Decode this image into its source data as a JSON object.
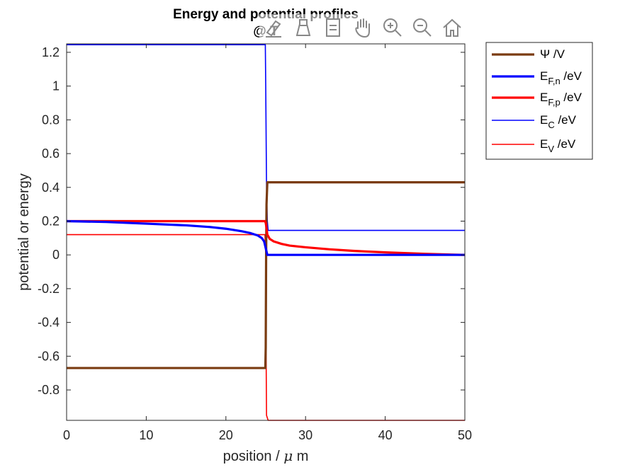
{
  "chart_data": {
    "type": "line",
    "title": "Energy and potential profiles",
    "title_line2": "@ T",
    "xlabel_text": "position / ",
    "xlabel_mu": "μ",
    "xlabel_unit": " m",
    "ylabel": "potential or energy",
    "xlim": [
      0,
      50
    ],
    "ylim": [
      -0.98,
      1.25
    ],
    "xticks": [
      0,
      10,
      20,
      30,
      40,
      50
    ],
    "xtick_labels": [
      "0",
      "10",
      "20",
      "30",
      "40",
      "50"
    ],
    "yticks": [
      -0.8,
      -0.6,
      -0.4,
      -0.2,
      0,
      0.2,
      0.4,
      0.6,
      0.8,
      1,
      1.2
    ],
    "ytick_labels": [
      "-0.8",
      "-0.6",
      "-0.4",
      "-0.2",
      "0",
      "0.2",
      "0.4",
      "0.6",
      "0.8",
      "1",
      "1.2"
    ],
    "grid": false,
    "legend_position": "outside-right-top",
    "series": [
      {
        "key": "psi",
        "name_main": "Ψ /V",
        "name_sub": "",
        "name_suffix": "",
        "color": "#7a3b10",
        "thick": true,
        "x": [
          0,
          24.95,
          25.0,
          25.05,
          25.1,
          25.2,
          50
        ],
        "y": [
          -0.67,
          -0.67,
          -0.55,
          0.0,
          0.3,
          0.43,
          0.43
        ]
      },
      {
        "key": "efn",
        "name_main": "E",
        "name_sub": "F,n",
        "name_suffix": " /eV",
        "color": "#0000ff",
        "thick": true,
        "x": [
          0,
          5,
          10,
          15,
          18,
          20,
          22,
          23,
          24,
          24.5,
          24.8,
          25.0,
          25.1,
          25.2,
          26,
          30,
          40,
          50
        ],
        "y": [
          0.2,
          0.195,
          0.185,
          0.175,
          0.165,
          0.155,
          0.14,
          0.13,
          0.115,
          0.1,
          0.08,
          0.04,
          0.02,
          0.0,
          0.0,
          0.0,
          0.0,
          0.0
        ]
      },
      {
        "key": "efp",
        "name_main": "E",
        "name_sub": "F,p",
        "name_suffix": " /eV",
        "color": "#ff0000",
        "thick": true,
        "x": [
          0,
          24.9,
          25.0,
          25.1,
          25.2,
          25.5,
          26,
          27,
          28,
          30,
          33,
          36,
          40,
          45,
          50
        ],
        "y": [
          0.2,
          0.2,
          0.19,
          0.16,
          0.12,
          0.095,
          0.08,
          0.065,
          0.055,
          0.045,
          0.033,
          0.024,
          0.015,
          0.006,
          0.0
        ]
      },
      {
        "key": "ec",
        "name_main": "E",
        "name_sub": "C",
        "name_suffix": " /eV",
        "color": "#0000ff",
        "thick": false,
        "x": [
          0,
          24.95,
          25.0,
          25.1,
          25.2,
          25.3,
          50
        ],
        "y": [
          1.245,
          1.245,
          1.0,
          0.4,
          0.2,
          0.145,
          0.145
        ]
      },
      {
        "key": "ev",
        "name_main": "E",
        "name_sub": "V",
        "name_suffix": " /eV",
        "color": "#ff0000",
        "thick": false,
        "x": [
          0,
          24.9,
          25.0,
          25.05,
          25.1,
          25.3,
          50
        ],
        "y": [
          0.12,
          0.12,
          0.0,
          -0.6,
          -0.95,
          -0.98,
          -0.98
        ]
      }
    ]
  },
  "toolbar": {
    "buttons": [
      "brush-icon",
      "data-tips-icon",
      "legend-icon",
      "pan-icon",
      "zoom-in-icon",
      "zoom-out-icon",
      "home-icon"
    ]
  }
}
